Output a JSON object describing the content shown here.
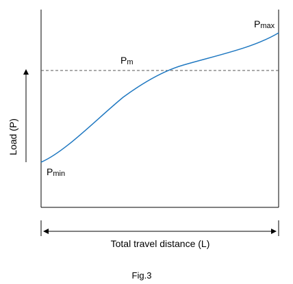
{
  "labels": {
    "p_max": {
      "main": "P",
      "sub": "max"
    },
    "p_m": {
      "main": "P",
      "sub": "m"
    },
    "p_min": {
      "main": "P",
      "sub": "min"
    }
  },
  "y_axis_label": "Load (P)",
  "x_axis_label": "Total travel distance (L)",
  "caption": "Fig.3"
}
